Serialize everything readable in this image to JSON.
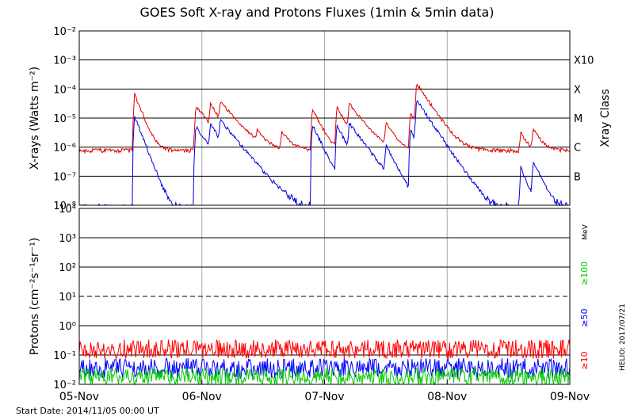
{
  "title": "GOES Soft X-ray and Protons Fluxes   (1min & 5min data)",
  "footer": {
    "start_date": "Start Date: 2014/11/05 00:00 UT",
    "credit": "HELIO: 2017/07/21"
  },
  "colors": {
    "xray_long": "#e00000",
    "xray_short": "#0000e0",
    "p10": "#ff0000",
    "p50": "#0000ff",
    "p100": "#00cc00",
    "grid": "#000000",
    "day_lines": "#aaaaaa"
  },
  "chart_data": [
    {
      "type": "line",
      "title": "GOES Soft X-ray and Protons Fluxes   (1min & 5min data)",
      "ylabel": "X-rays (Watts m⁻²)",
      "y_scale": "log",
      "ylim": [
        1e-08,
        0.01
      ],
      "y_ticks": [
        "10⁻⁸",
        "10⁻⁷",
        "10⁻⁶",
        "10⁻⁵",
        "10⁻⁴",
        "10⁻³",
        "10⁻²"
      ],
      "x_ticks": [
        "05-Nov",
        "06-Nov",
        "07-Nov",
        "08-Nov",
        "09-Nov"
      ],
      "xlim_days": [
        0,
        4
      ],
      "right_axis_label": "Xray Class",
      "classes": [
        {
          "label": "B",
          "value": 1e-07
        },
        {
          "label": "C",
          "value": 1e-06
        },
        {
          "label": "M",
          "value": 1e-05
        },
        {
          "label": "X",
          "value": 0.0001
        },
        {
          "label": "X10",
          "value": 0.001
        }
      ],
      "series": [
        {
          "name": "",
          "color": "#e00000",
          "baseline": 7.5e-07,
          "flares": [
            {
              "t": 0.45,
              "peak": 7e-05,
              "decay": 0.04
            },
            {
              "t": 0.95,
              "peak": 2.5e-05,
              "decay": 0.08
            },
            {
              "t": 1.07,
              "peak": 2.8e-05,
              "decay": 0.05
            },
            {
              "t": 1.15,
              "peak": 3e-05,
              "decay": 0.09
            },
            {
              "t": 1.45,
              "peak": 2.2e-06,
              "decay": 0.05
            },
            {
              "t": 1.65,
              "peak": 2.5e-06,
              "decay": 0.06
            },
            {
              "t": 1.9,
              "peak": 2e-05,
              "decay": 0.05
            },
            {
              "t": 2.1,
              "peak": 2.5e-05,
              "decay": 0.05
            },
            {
              "t": 2.2,
              "peak": 2.8e-05,
              "decay": 0.08
            },
            {
              "t": 2.5,
              "peak": 6e-06,
              "decay": 0.05
            },
            {
              "t": 2.7,
              "peak": 1.5e-05,
              "decay": 0.05
            },
            {
              "t": 2.75,
              "peak": 0.00015,
              "decay": 0.07
            },
            {
              "t": 3.6,
              "peak": 2.5e-06,
              "decay": 0.04
            },
            {
              "t": 3.7,
              "peak": 3.5e-06,
              "decay": 0.05
            }
          ]
        },
        {
          "name": "",
          "color": "#0000e0",
          "baseline": 5e-09,
          "flares": [
            {
              "t": 0.45,
              "peak": 1.2e-05,
              "decay": 0.04
            },
            {
              "t": 0.95,
              "peak": 5e-06,
              "decay": 0.08
            },
            {
              "t": 1.07,
              "peak": 6e-06,
              "decay": 0.05
            },
            {
              "t": 1.15,
              "peak": 7e-06,
              "decay": 0.09
            },
            {
              "t": 1.9,
              "peak": 6e-06,
              "decay": 0.05
            },
            {
              "t": 2.1,
              "peak": 6e-06,
              "decay": 0.05
            },
            {
              "t": 2.2,
              "peak": 6e-06,
              "decay": 0.08
            },
            {
              "t": 2.5,
              "peak": 1e-06,
              "decay": 0.05
            },
            {
              "t": 2.7,
              "peak": 4e-06,
              "decay": 0.05
            },
            {
              "t": 2.75,
              "peak": 4e-05,
              "decay": 0.07
            },
            {
              "t": 3.6,
              "peak": 2e-07,
              "decay": 0.04
            },
            {
              "t": 3.7,
              "peak": 3e-07,
              "decay": 0.05
            }
          ]
        }
      ]
    },
    {
      "type": "line",
      "ylabel": "Protons (cm⁻²s⁻¹sr⁻¹)",
      "y_scale": "log",
      "ylim": [
        0.01,
        10000
      ],
      "y_ticks": [
        "10⁻²",
        "10⁻¹",
        "10⁰",
        "10¹",
        "10²",
        "10³",
        "10⁴"
      ],
      "x_ticks": [
        "05-Nov",
        "06-Nov",
        "07-Nov",
        "08-Nov",
        "09-Nov"
      ],
      "threshold": 10,
      "unit_label": "MeV",
      "series": [
        {
          "name": "≥10",
          "color": "#ff0000",
          "level": 0.16,
          "spread": 0.65
        },
        {
          "name": "≥50",
          "color": "#0000ff",
          "level": 0.035,
          "spread": 0.7
        },
        {
          "name": "≥100",
          "color": "#00cc00",
          "level": 0.018,
          "spread": 0.6
        }
      ]
    }
  ]
}
